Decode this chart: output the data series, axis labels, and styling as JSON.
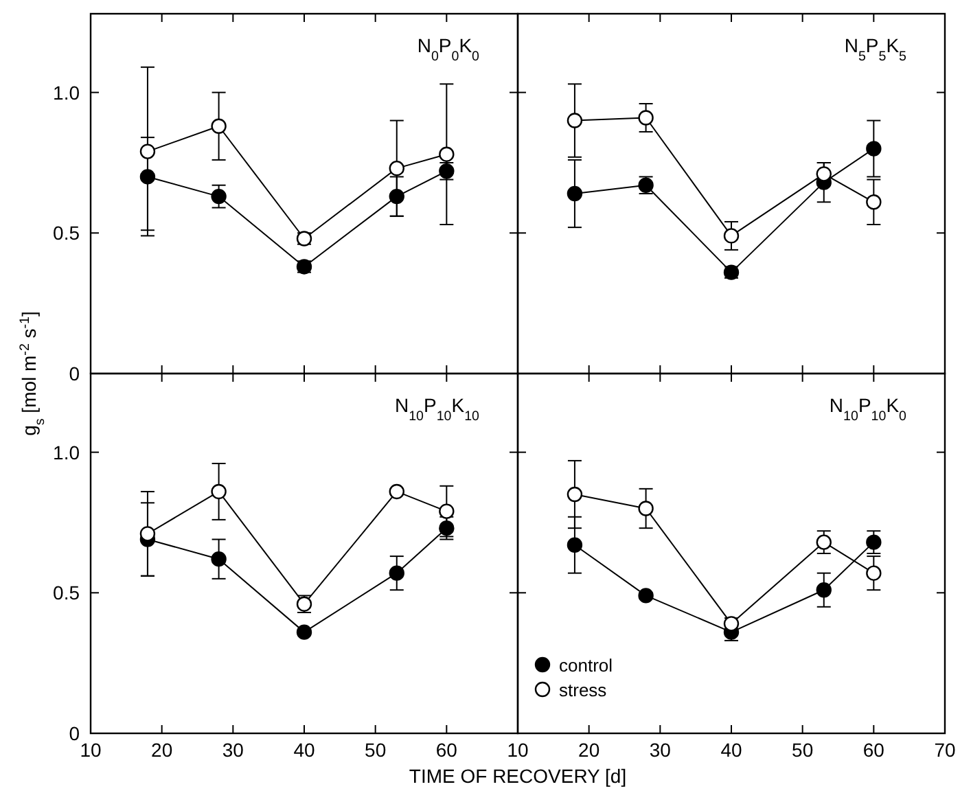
{
  "chart_data": [
    {
      "type": "line",
      "title": "N$_{0}$P$_{0}$K$_{0}$",
      "ylabel": "g$_{s}$ [mol m$^{-2}$ s$^{-1}$]",
      "x": [
        18,
        28,
        40,
        53,
        60
      ],
      "xlim": [
        10,
        70
      ],
      "xticks": [
        10,
        20,
        30,
        40,
        50,
        60,
        70
      ],
      "ylim": [
        0,
        1.28
      ],
      "yticks": [
        0,
        0.5,
        {
          "value": 1,
          "label": "1.0"
        }
      ],
      "tick_labels": "y",
      "marker": "circle",
      "legend": false,
      "series": [
        {
          "color": "#000000",
          "values": [
            0.7,
            0.63,
            0.38,
            0.63,
            0.72
          ],
          "errors": [
            [
              0.51,
              0.84
            ],
            0.04,
            0.02,
            0.07,
            0.03
          ]
        },
        {
          "color": "#ffffff",
          "values": [
            0.79,
            0.88,
            0.48,
            0.73,
            0.78
          ],
          "errors": [
            0.3,
            0.12,
            0.02,
            0.17,
            0.25
          ]
        }
      ]
    },
    {
      "type": "line",
      "title": "N$_{5}$P$_{5}$K$_{5}$",
      "x": [
        18,
        28,
        40,
        53,
        60
      ],
      "xlim": [
        10,
        70
      ],
      "xticks": [
        10,
        20,
        30,
        40,
        50,
        60,
        70
      ],
      "ylim": [
        0,
        1.28
      ],
      "yticks": [
        0,
        0.5,
        1
      ],
      "tick_labels": false,
      "marker": "circle",
      "legend": false,
      "series": [
        {
          "color": "#000000",
          "values": [
            0.64,
            0.67,
            0.36,
            0.68,
            0.8
          ],
          "errors": [
            0.12,
            0.03,
            0.02,
            0.07,
            0.1
          ]
        },
        {
          "color": "#ffffff",
          "values": [
            0.9,
            0.91,
            0.49,
            0.71,
            0.61
          ],
          "errors": [
            0.13,
            0.05,
            0.05,
            0.04,
            0.08
          ]
        }
      ]
    },
    {
      "type": "line",
      "title": "N$_{10}$P$_{10}$K$_{10}$",
      "xlabel": "TIME OF RECOVERY [d]",
      "x": [
        18,
        28,
        40,
        53,
        60
      ],
      "xlim": [
        10,
        70
      ],
      "xticks": [
        10,
        20,
        30,
        40,
        50,
        60,
        {
          "value": 70,
          "label": null
        }
      ],
      "ylim": [
        0,
        1.28
      ],
      "yticks": [
        0,
        0.5,
        {
          "value": 1,
          "label": "1.0"
        }
      ],
      "marker": "circle",
      "legend": false,
      "series": [
        {
          "color": "#000000",
          "values": [
            0.69,
            0.62,
            0.36,
            0.57,
            0.73
          ],
          "errors": [
            0.13,
            0.07,
            0.01,
            0.06,
            0.04
          ]
        },
        {
          "color": "#ffffff",
          "values": [
            0.71,
            0.86,
            0.46,
            0.86,
            0.79
          ],
          "errors": [
            0.15,
            0.1,
            0.03,
            0.01,
            0.09
          ]
        }
      ]
    },
    {
      "type": "line",
      "title": "N$_{10}$P$_{10}$K$_{0}$",
      "x": [
        18,
        28,
        40,
        53,
        60
      ],
      "xlim": [
        10,
        70
      ],
      "xticks": [
        10,
        20,
        30,
        40,
        50,
        60,
        70
      ],
      "ylim": [
        0,
        1.28
      ],
      "yticks": [
        0,
        0.5,
        1
      ],
      "tick_labels": "x",
      "marker": "circle",
      "legend": "bottom left",
      "series": [
        {
          "name": "control",
          "color": "#000000",
          "values": [
            0.67,
            0.49,
            0.36,
            0.51,
            0.68
          ],
          "errors": [
            0.1,
            0.01,
            0.03,
            0.06,
            0.04
          ]
        },
        {
          "name": "stress",
          "color": "#ffffff",
          "values": [
            0.85,
            0.8,
            0.39,
            0.68,
            0.57
          ],
          "errors": [
            0.12,
            0.07,
            0.02,
            0.04,
            0.06
          ]
        }
      ]
    }
  ]
}
